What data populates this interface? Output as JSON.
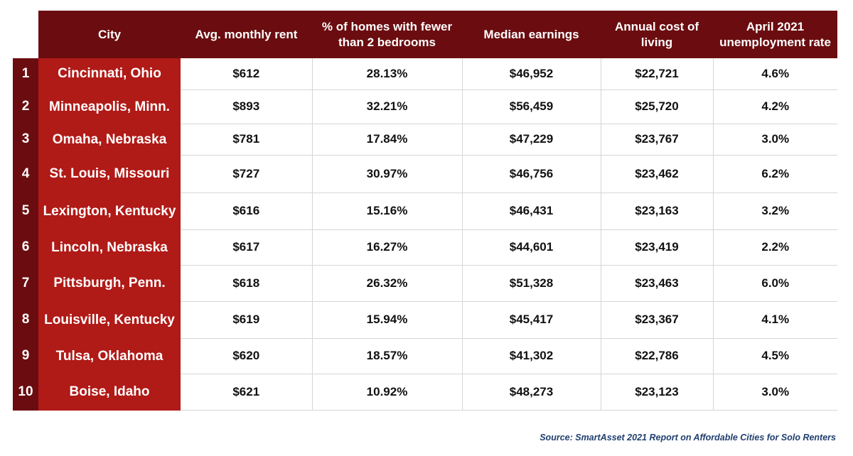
{
  "chart_data": {
    "type": "table",
    "columns": [
      "City",
      "Avg. monthly rent",
      "% of homes with fewer than 2 bedrooms",
      "Median earnings",
      "Annual cost of living",
      "April 2021 unemployment rate"
    ],
    "rows": [
      {
        "rank": "1",
        "city": "Cincinnati, Ohio",
        "rent": "$612",
        "pct_homes": "28.13%",
        "earnings": "$46,952",
        "cost": "$22,721",
        "unemployment": "4.6%"
      },
      {
        "rank": "2",
        "city": "Minneapolis, Minn.",
        "rent": "$893",
        "pct_homes": "32.21%",
        "earnings": "$56,459",
        "cost": "$25,720",
        "unemployment": "4.2%"
      },
      {
        "rank": "3",
        "city": "Omaha, Nebraska",
        "rent": "$781",
        "pct_homes": "17.84%",
        "earnings": "$47,229",
        "cost": "$23,767",
        "unemployment": "3.0%"
      },
      {
        "rank": "4",
        "city": "St. Louis, Missouri",
        "rent": "$727",
        "pct_homes": "30.97%",
        "earnings": "$46,756",
        "cost": "$23,462",
        "unemployment": "6.2%"
      },
      {
        "rank": "5",
        "city": "Lexington, Kentucky",
        "rent": "$616",
        "pct_homes": "15.16%",
        "earnings": "$46,431",
        "cost": "$23,163",
        "unemployment": "3.2%"
      },
      {
        "rank": "6",
        "city": "Lincoln, Nebraska",
        "rent": "$617",
        "pct_homes": "16.27%",
        "earnings": "$44,601",
        "cost": "$23,419",
        "unemployment": "2.2%"
      },
      {
        "rank": "7",
        "city": "Pittsburgh, Penn.",
        "rent": "$618",
        "pct_homes": "26.32%",
        "earnings": "$51,328",
        "cost": "$23,463",
        "unemployment": "6.0%"
      },
      {
        "rank": "8",
        "city": "Louisville, Kentucky",
        "rent": "$619",
        "pct_homes": "15.94%",
        "earnings": "$45,417",
        "cost": "$23,367",
        "unemployment": "4.1%"
      },
      {
        "rank": "9",
        "city": "Tulsa, Oklahoma",
        "rent": "$620",
        "pct_homes": "18.57%",
        "earnings": "$41,302",
        "cost": "$22,786",
        "unemployment": "4.5%"
      },
      {
        "rank": "10",
        "city": "Boise, Idaho",
        "rent": "$621",
        "pct_homes": "10.92%",
        "earnings": "$48,273",
        "cost": "$23,123",
        "unemployment": "3.0%"
      }
    ]
  },
  "source": "Source: SmartAsset 2021 Report on Affordable Cities for Solo Renters",
  "colors": {
    "header_bg": "#6b0d10",
    "rank_bg": "#6b0d10",
    "city_bg": "#b01a17",
    "source_text": "#1f3f6e"
  }
}
